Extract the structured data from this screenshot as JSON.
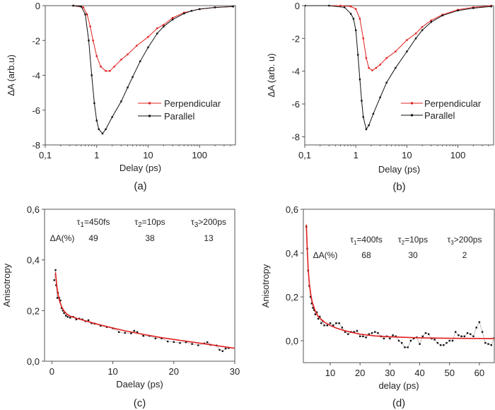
{
  "colors": {
    "red": "#e02020",
    "black": "#111111",
    "axis": "#555555"
  },
  "chart_data": [
    {
      "panel": "(a)",
      "type": "line",
      "xscale": "log",
      "xlabel": "Delay (ps)",
      "ylabel": "ΔA (arb.u)",
      "xlim": [
        0.1,
        500
      ],
      "ylim": [
        -8,
        0
      ],
      "xticks": [
        0.1,
        1,
        10,
        100
      ],
      "xticklabels": [
        "0,1",
        "1",
        "10",
        "100"
      ],
      "yticks": [
        0,
        -2,
        -4,
        -6,
        -8
      ],
      "yticklabels": [
        "0",
        "-2",
        "-4",
        "-6",
        "-8"
      ],
      "legend": "center-right",
      "series": [
        {
          "name": "Perpendicular",
          "color": "#e02020",
          "x": [
            0.35,
            0.55,
            0.65,
            0.75,
            0.85,
            1.0,
            1.2,
            1.5,
            1.8,
            2.2,
            3,
            4,
            6,
            10,
            15,
            20,
            30,
            50,
            100,
            200,
            450
          ],
          "y": [
            0,
            -0.1,
            -0.5,
            -1.2,
            -2,
            -2.9,
            -3.5,
            -3.75,
            -3.75,
            -3.5,
            -3.1,
            -2.8,
            -2.3,
            -1.8,
            -1.3,
            -1.1,
            -0.7,
            -0.4,
            -0.2,
            -0.1,
            -0.05
          ]
        },
        {
          "name": "Parallel",
          "color": "#111111",
          "x": [
            0.35,
            0.5,
            0.6,
            0.7,
            0.8,
            0.9,
            1.0,
            1.1,
            1.3,
            1.5,
            2,
            3,
            4,
            5,
            7,
            10,
            15,
            20,
            30,
            50,
            70,
            100,
            200,
            450
          ],
          "y": [
            0,
            -0.05,
            -0.5,
            -2,
            -4,
            -5.6,
            -6.6,
            -7.1,
            -7.35,
            -7.1,
            -6.4,
            -5.5,
            -4.7,
            -4.1,
            -3.2,
            -2.4,
            -1.6,
            -1.2,
            -0.8,
            -0.45,
            -0.3,
            -0.2,
            -0.1,
            -0.05
          ]
        }
      ]
    },
    {
      "panel": "(b)",
      "type": "line",
      "xscale": "log",
      "xlabel": "Delay (ps)",
      "ylabel": "ΔA (arb. u)",
      "xlim": [
        0.1,
        500
      ],
      "ylim": [
        -8.5,
        0
      ],
      "xticks": [
        0.1,
        1,
        10,
        100
      ],
      "xticklabels": [
        "0,1",
        "1",
        "10",
        "100"
      ],
      "yticks": [
        0,
        -2,
        -4,
        -6,
        -8
      ],
      "yticklabels": [
        "0",
        "-2",
        "-4",
        "-6",
        "-8"
      ],
      "legend": "center-right",
      "series": [
        {
          "name": "Perpendicular",
          "color": "#e02020",
          "x": [
            0.1,
            0.5,
            0.8,
            1.0,
            1.2,
            1.4,
            1.6,
            1.8,
            2.1,
            2.5,
            3,
            4,
            6,
            10,
            15,
            20,
            30,
            50,
            100,
            200,
            450
          ],
          "y": [
            0,
            0,
            -0.05,
            -0.2,
            -0.8,
            -2,
            -3.2,
            -3.8,
            -3.95,
            -3.8,
            -3.6,
            -3.2,
            -2.8,
            -2.1,
            -1.7,
            -1.3,
            -0.9,
            -0.55,
            -0.25,
            -0.1,
            0
          ]
        },
        {
          "name": "Parallel",
          "color": "#111111",
          "x": [
            0.1,
            0.3,
            0.6,
            0.8,
            0.9,
            1.0,
            1.1,
            1.2,
            1.3,
            1.4,
            1.6,
            1.8,
            2.2,
            3,
            4,
            6,
            10,
            15,
            20,
            30,
            50,
            100,
            200,
            450
          ],
          "y": [
            0,
            0,
            -0.1,
            -0.5,
            -0.8,
            -1.5,
            -3,
            -4.5,
            -5.8,
            -6.8,
            -7.55,
            -7.3,
            -6.6,
            -5.6,
            -4.7,
            -3.8,
            -2.8,
            -2.0,
            -1.5,
            -1.0,
            -0.6,
            -0.3,
            -0.15,
            -0.05
          ]
        }
      ]
    },
    {
      "panel": "(c)",
      "type": "scatter",
      "xlabel": "Daelay (ps)",
      "ylabel": "Anisotropy",
      "xlim": [
        -1.2,
        30
      ],
      "ylim": [
        0,
        0.6
      ],
      "xticks": [
        0,
        10,
        20,
        30
      ],
      "xticklabels": [
        "0",
        "10",
        "20",
        "30"
      ],
      "yticks": [
        0,
        0.2,
        0.4,
        0.6
      ],
      "yticklabels": [
        "0,0",
        "0,2",
        "0,4",
        "0,6"
      ],
      "annotations": {
        "taus": [
          {
            "sym": "τ",
            "sub": "1",
            "rest": "=450fs"
          },
          {
            "sym": "τ",
            "sub": "2",
            "rest": "=10ps"
          },
          {
            "sym": "τ",
            "sub": "3",
            "rest": ">200ps"
          }
        ],
        "amp_label": "ΔA(%)",
        "amps": [
          "49",
          "38",
          "13"
        ]
      },
      "series": [
        {
          "kind": "data",
          "color": "#111111",
          "x": [
            0.4,
            0.6,
            0.7,
            0.9,
            1.0,
            1.2,
            1.4,
            1.6,
            1.8,
            2.0,
            2.3,
            2.6,
            3.0,
            3.5,
            4.0,
            4.5,
            5.0,
            5.5,
            6.0,
            6.5,
            7.0,
            8.0,
            9.0,
            10.0,
            11.0,
            12.0,
            13.0,
            13.5,
            14.0,
            15.0,
            16.0,
            17.0,
            18.0,
            19.0,
            20.0,
            21.0,
            22.0,
            23.0,
            24.0,
            25.0,
            25.5,
            26.0,
            27.0,
            27.5,
            28.0,
            28.5,
            29.0
          ],
          "y": [
            0.32,
            0.36,
            0.3,
            0.25,
            0.27,
            0.25,
            0.24,
            0.21,
            0.2,
            0.19,
            0.18,
            0.175,
            0.172,
            0.175,
            0.165,
            0.168,
            0.165,
            0.158,
            0.162,
            0.15,
            0.148,
            0.14,
            0.135,
            0.13,
            0.115,
            0.112,
            0.11,
            0.12,
            0.115,
            0.1,
            0.1,
            0.09,
            0.09,
            0.078,
            0.076,
            0.072,
            0.075,
            0.068,
            0.063,
            0.07,
            0.075,
            0.065,
            0.062,
            0.045,
            0.04,
            0.05,
            0.052
          ]
        },
        {
          "kind": "fit",
          "color": "#e02020",
          "x": [
            0.6,
            0.8,
            1,
            1.3,
            1.6,
            2,
            2.5,
            3,
            4,
            5,
            6,
            8,
            10,
            12,
            15,
            18,
            20,
            22,
            25,
            28,
            30
          ],
          "y": [
            0.35,
            0.3,
            0.265,
            0.235,
            0.215,
            0.198,
            0.185,
            0.178,
            0.17,
            0.163,
            0.156,
            0.143,
            0.131,
            0.12,
            0.106,
            0.093,
            0.086,
            0.079,
            0.069,
            0.058,
            0.051
          ]
        }
      ]
    },
    {
      "panel": "(d)",
      "type": "scatter",
      "xlabel": "delay (ps)",
      "ylabel": "Anisotropy",
      "xlim": [
        1,
        65
      ],
      "ylim": [
        -0.1,
        0.6
      ],
      "xticks": [
        10,
        20,
        30,
        40,
        50,
        60
      ],
      "xticklabels": [
        "10",
        "20",
        "30",
        "40",
        "50",
        "60"
      ],
      "yticks": [
        0,
        0.2,
        0.4,
        0.6
      ],
      "yticklabels": [
        "0,0",
        "0,2",
        "0,4",
        "0,6"
      ],
      "annotations": {
        "taus": [
          {
            "sym": "τ",
            "sub": "1",
            "rest": "=400fs"
          },
          {
            "sym": "τ",
            "sub": "2",
            "rest": "=10ps"
          },
          {
            "sym": "τ",
            "sub": "3",
            "rest": ">200ps"
          }
        ],
        "amp_label": "ΔA(%)",
        "amps": [
          "68",
          "30",
          "2"
        ]
      },
      "series": [
        {
          "kind": "data",
          "color": "#111111",
          "x": [
            2,
            2.3,
            2.6,
            3,
            3.4,
            3.8,
            4.2,
            4.6,
            5,
            5.5,
            6,
            6.5,
            7,
            7.5,
            8,
            9,
            10,
            11,
            12,
            13,
            14,
            15,
            16,
            17,
            18,
            19,
            20,
            21,
            22,
            23,
            24,
            25,
            26,
            27,
            28,
            29,
            30,
            31,
            32,
            33,
            34,
            35,
            36,
            37,
            38,
            39,
            40,
            41,
            42,
            43,
            44,
            45,
            46,
            47,
            48,
            49,
            50,
            51,
            52,
            53,
            54,
            55,
            56,
            57,
            58,
            59,
            60,
            61,
            62,
            63,
            64,
            65
          ],
          "y": [
            0.52,
            0.42,
            0.32,
            0.25,
            0.2,
            0.17,
            0.15,
            0.14,
            0.12,
            0.13,
            0.1,
            0.11,
            0.08,
            0.09,
            0.07,
            0.07,
            0.08,
            0.07,
            0.08,
            0.08,
            0.06,
            0.04,
            0.03,
            0.04,
            0.04,
            0.045,
            0.02,
            0.02,
            0.015,
            0.03,
            0.035,
            0.04,
            0.035,
            0.02,
            0.01,
            0.02,
            0.01,
            0.025,
            0.02,
            0.0,
            -0.01,
            -0.03,
            -0.03,
            0.0,
            0.01,
            0.015,
            -0.015,
            0.02,
            0.035,
            0.03,
            0.01,
            0.005,
            -0.01,
            -0.02,
            -0.02,
            -0.01,
            0.0,
            0.0,
            0.04,
            0.025,
            0.02,
            0.02,
            0.035,
            0.03,
            0.02,
            0.06,
            0.085,
            0.04,
            -0.01,
            -0.015,
            -0.02,
            0.012
          ]
        },
        {
          "kind": "fit",
          "color": "#e02020",
          "x": [
            2,
            2.3,
            2.6,
            3,
            3.5,
            4,
            5,
            6,
            8,
            10,
            12,
            15,
            20,
            25,
            30,
            40,
            50,
            65
          ],
          "y": [
            0.53,
            0.42,
            0.33,
            0.26,
            0.21,
            0.175,
            0.135,
            0.11,
            0.085,
            0.07,
            0.058,
            0.045,
            0.03,
            0.022,
            0.018,
            0.013,
            0.011,
            0.01
          ]
        }
      ]
    }
  ]
}
